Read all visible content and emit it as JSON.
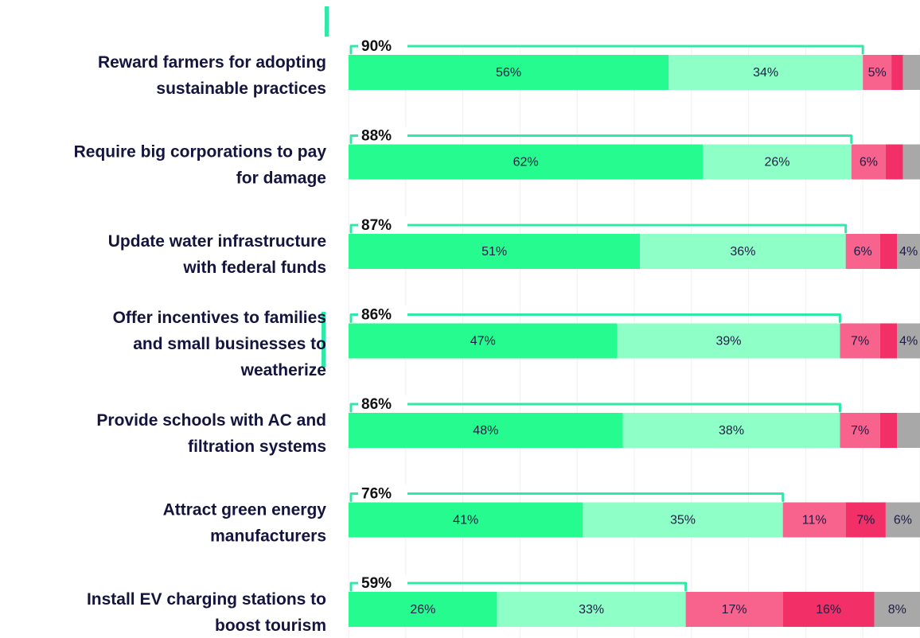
{
  "chart_data": {
    "type": "stacked_bar_horizontal",
    "categories": [
      [
        "Reward farmers for adopting",
        "sustainable practices"
      ],
      [
        "Require big corporations to pay",
        "for damage"
      ],
      [
        "Update water  infrastructure",
        "with federal funds"
      ],
      [
        "Offer incentives to families",
        "and small businesses to",
        "weatherize"
      ],
      [
        "Provide schools with AC and",
        "filtration systems"
      ],
      [
        "Attract green energy",
        "manufacturers"
      ],
      [
        "Install EV charging stations to",
        "boost tourism"
      ]
    ],
    "series": [
      {
        "color": "#25fb8e",
        "values": [
          56,
          62,
          51,
          47,
          48,
          41,
          26
        ],
        "value_labels": [
          "56%",
          "62%",
          "51%",
          "47%",
          "48%",
          "41%",
          "26%"
        ]
      },
      {
        "color": "#8effc6",
        "values": [
          34,
          26,
          36,
          39,
          38,
          35,
          33
        ],
        "value_labels": [
          "34%",
          "26%",
          "36%",
          "39%",
          "38%",
          "35%",
          "33%"
        ]
      },
      {
        "color": "#f8638e",
        "values": [
          5,
          6,
          6,
          7,
          7,
          11,
          17
        ],
        "value_labels": [
          "5%",
          "6%",
          "6%",
          "7%",
          "7%",
          "11%",
          "17%"
        ]
      },
      {
        "color": "#f22f66",
        "values": [
          2,
          3,
          3,
          3,
          3,
          7,
          16
        ],
        "value_labels": [
          null,
          null,
          null,
          null,
          null,
          "7%",
          "16%"
        ]
      },
      {
        "color": "#a8a8a8",
        "values": [
          3,
          3,
          4,
          4,
          4,
          6,
          8
        ],
        "value_labels": [
          null,
          null,
          "4%",
          "4%",
          null,
          "6%",
          "8%"
        ]
      }
    ],
    "support_totals": [
      90,
      88,
      87,
      86,
      86,
      76,
      59
    ],
    "support_labels": [
      "90%",
      "88%",
      "87%",
      "86%",
      "86%",
      "76%",
      "59%"
    ],
    "bracket_color": "#2fe9a6",
    "xlim": [
      0,
      100
    ],
    "xticks": [
      0,
      10,
      20,
      30,
      40,
      50,
      60,
      70,
      80,
      90,
      100
    ],
    "grid": true
  }
}
